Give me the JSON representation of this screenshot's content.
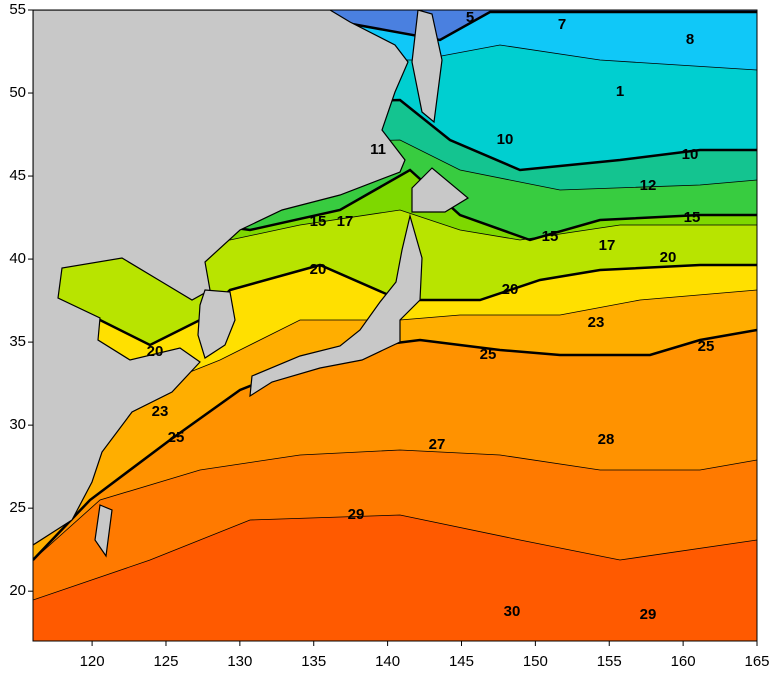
{
  "map": {
    "xlim": [
      116,
      165
    ],
    "ylim": [
      17,
      55
    ],
    "xticks": [
      120,
      125,
      130,
      135,
      140,
      145,
      150,
      155,
      160,
      165
    ],
    "yticks": [
      20,
      25,
      30,
      35,
      40,
      45,
      50,
      55
    ],
    "contour_labels": [
      5,
      7,
      8,
      1,
      10,
      10,
      11,
      12,
      15,
      17,
      15,
      15,
      17,
      20,
      20,
      20,
      20,
      23,
      25,
      25,
      23,
      25,
      27,
      28,
      29,
      29,
      30
    ]
  }
}
